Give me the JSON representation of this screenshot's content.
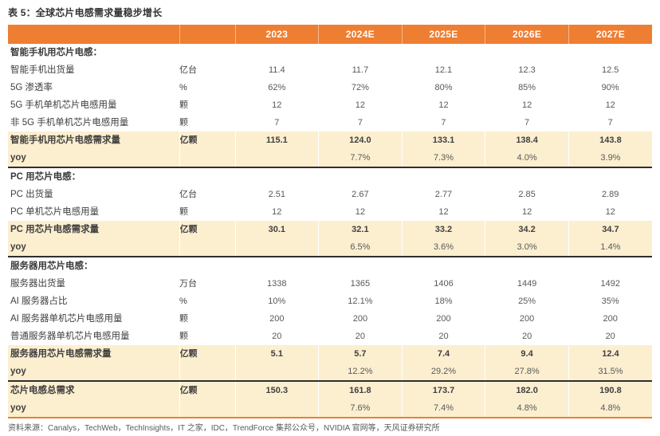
{
  "title": "表 5：全球芯片电感需求量稳步增长",
  "colors": {
    "header_bg": "#EE7E32",
    "header_text": "#FFFFFF",
    "highlight_bg": "#FCEFD0",
    "divider": "#2F2F2F",
    "body_text": "#595959"
  },
  "table": {
    "header": [
      "",
      "",
      "2023",
      "2024E",
      "2025E",
      "2026E",
      "2027E"
    ],
    "rows": [
      {
        "style": "section",
        "divider": false,
        "label": "智能手机用芯片电感：",
        "unit": "",
        "values": [
          "",
          "",
          "",
          "",
          ""
        ]
      },
      {
        "style": "data",
        "divider": false,
        "label": "智能手机出货量",
        "unit": "亿台",
        "values": [
          "11.4",
          "11.7",
          "12.1",
          "12.3",
          "12.5"
        ]
      },
      {
        "style": "data",
        "divider": false,
        "label": "5G 渗透率",
        "unit": "%",
        "values": [
          "62%",
          "72%",
          "80%",
          "85%",
          "90%"
        ]
      },
      {
        "style": "data",
        "divider": false,
        "label": "5G 手机单机芯片电感用量",
        "unit": "颗",
        "values": [
          "12",
          "12",
          "12",
          "12",
          "12"
        ]
      },
      {
        "style": "data",
        "divider": false,
        "label": "非 5G 手机单机芯片电感用量",
        "unit": "颗",
        "values": [
          "7",
          "7",
          "7",
          "7",
          "7"
        ]
      },
      {
        "style": "highlight",
        "divider": false,
        "label": "智能手机用芯片电感需求量",
        "unit": "亿颗",
        "values": [
          "115.1",
          "124.0",
          "133.1",
          "138.4",
          "143.8"
        ]
      },
      {
        "style": "yoy",
        "divider": true,
        "label": "yoy",
        "unit": "",
        "values": [
          "",
          "7.7%",
          "7.3%",
          "4.0%",
          "3.9%"
        ]
      },
      {
        "style": "section",
        "divider": false,
        "label": "PC 用芯片电感：",
        "unit": "",
        "values": [
          "",
          "",
          "",
          "",
          ""
        ]
      },
      {
        "style": "data",
        "divider": false,
        "label": "PC 出货量",
        "unit": "亿台",
        "values": [
          "2.51",
          "2.67",
          "2.77",
          "2.85",
          "2.89"
        ]
      },
      {
        "style": "data",
        "divider": false,
        "label": "PC 单机芯片电感用量",
        "unit": "颗",
        "values": [
          "12",
          "12",
          "12",
          "12",
          "12"
        ]
      },
      {
        "style": "highlight",
        "divider": false,
        "label": "PC 用芯片电感需求量",
        "unit": "亿颗",
        "values": [
          "30.1",
          "32.1",
          "33.2",
          "34.2",
          "34.7"
        ]
      },
      {
        "style": "yoy",
        "divider": true,
        "label": "yoy",
        "unit": "",
        "values": [
          "",
          "6.5%",
          "3.6%",
          "3.0%",
          "1.4%"
        ]
      },
      {
        "style": "section",
        "divider": false,
        "label": "服务器用芯片电感：",
        "unit": "",
        "values": [
          "",
          "",
          "",
          "",
          ""
        ]
      },
      {
        "style": "data",
        "divider": false,
        "label": "服务器出货量",
        "unit": "万台",
        "values": [
          "1338",
          "1365",
          "1406",
          "1449",
          "1492"
        ]
      },
      {
        "style": "data",
        "divider": false,
        "label": "AI 服务器占比",
        "unit": "%",
        "values": [
          "10%",
          "12.1%",
          "18%",
          "25%",
          "35%"
        ]
      },
      {
        "style": "data",
        "divider": false,
        "label": "AI 服务器单机芯片电感用量",
        "unit": "颗",
        "values": [
          "200",
          "200",
          "200",
          "200",
          "200"
        ]
      },
      {
        "style": "data",
        "divider": false,
        "label": "普通服务器单机芯片电感用量",
        "unit": "颗",
        "values": [
          "20",
          "20",
          "20",
          "20",
          "20"
        ]
      },
      {
        "style": "highlight",
        "divider": false,
        "label": "服务器用芯片电感需求量",
        "unit": "亿颗",
        "values": [
          "5.1",
          "5.7",
          "7.4",
          "9.4",
          "12.4"
        ]
      },
      {
        "style": "yoy",
        "divider": true,
        "label": "yoy",
        "unit": "",
        "values": [
          "",
          "12.2%",
          "29.2%",
          "27.8%",
          "31.5%"
        ]
      },
      {
        "style": "highlight",
        "divider": false,
        "label": "芯片电感总需求",
        "unit": "亿颗",
        "values": [
          "150.3",
          "161.8",
          "173.7",
          "182.0",
          "190.8"
        ]
      },
      {
        "style": "yoy",
        "divider": false,
        "label": "yoy",
        "unit": "",
        "values": [
          "",
          "7.6%",
          "7.4%",
          "4.8%",
          "4.8%"
        ]
      }
    ]
  },
  "footer": "资料来源：Canalys，TechWeb，TechInsights，IT 之家，IDC，TrendForce 集邦公众号，NVIDIA 官网等，天风证券研究所"
}
